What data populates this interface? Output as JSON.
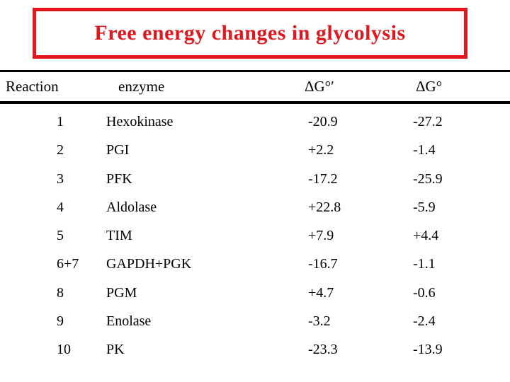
{
  "title": "Free energy changes in glycolysis",
  "colors": {
    "accent_red": "#e2171d",
    "text": "#000000",
    "background": "#ffffff"
  },
  "table": {
    "headers": {
      "reaction": "Reaction",
      "enzyme": "enzyme",
      "dg_prime": "ΔG°′",
      "dg": "ΔG°"
    },
    "rows": [
      {
        "reaction": "1",
        "enzyme": "Hexokinase",
        "dg_prime": "-20.9",
        "dg": "-27.2"
      },
      {
        "reaction": "2",
        "enzyme": "PGI",
        "dg_prime": "+2.2",
        "dg": "-1.4"
      },
      {
        "reaction": "3",
        "enzyme": "PFK",
        "dg_prime": "-17.2",
        "dg": "-25.9"
      },
      {
        "reaction": "4",
        "enzyme": "Aldolase",
        "dg_prime": "+22.8",
        "dg": "-5.9"
      },
      {
        "reaction": "5",
        "enzyme": "TIM",
        "dg_prime": "+7.9",
        "dg": "+4.4"
      },
      {
        "reaction": "6+7",
        "enzyme": "GAPDH+PGK",
        "dg_prime": "-16.7",
        "dg": "-1.1"
      },
      {
        "reaction": "8",
        "enzyme": "PGM",
        "dg_prime": "+4.7",
        "dg": "-0.6"
      },
      {
        "reaction": "9",
        "enzyme": "Enolase",
        "dg_prime": "-3.2",
        "dg": "-2.4"
      },
      {
        "reaction": "10",
        "enzyme": "PK",
        "dg_prime": "-23.3",
        "dg": "-13.9"
      }
    ]
  },
  "chart_data": {
    "type": "table",
    "title": "Free energy changes in glycolysis",
    "columns": [
      "Reaction",
      "enzyme",
      "ΔG°′",
      "ΔG°"
    ],
    "rows": [
      [
        "1",
        "Hexokinase",
        -20.9,
        -27.2
      ],
      [
        "2",
        "PGI",
        2.2,
        -1.4
      ],
      [
        "3",
        "PFK",
        -17.2,
        -25.9
      ],
      [
        "4",
        "Aldolase",
        22.8,
        -5.9
      ],
      [
        "5",
        "TIM",
        7.9,
        4.4
      ],
      [
        "6+7",
        "GAPDH+PGK",
        -16.7,
        -1.1
      ],
      [
        "8",
        "PGM",
        4.7,
        -0.6
      ],
      [
        "9",
        "Enolase",
        -3.2,
        -2.4
      ],
      [
        "10",
        "PK",
        -23.3,
        -13.9
      ]
    ]
  }
}
